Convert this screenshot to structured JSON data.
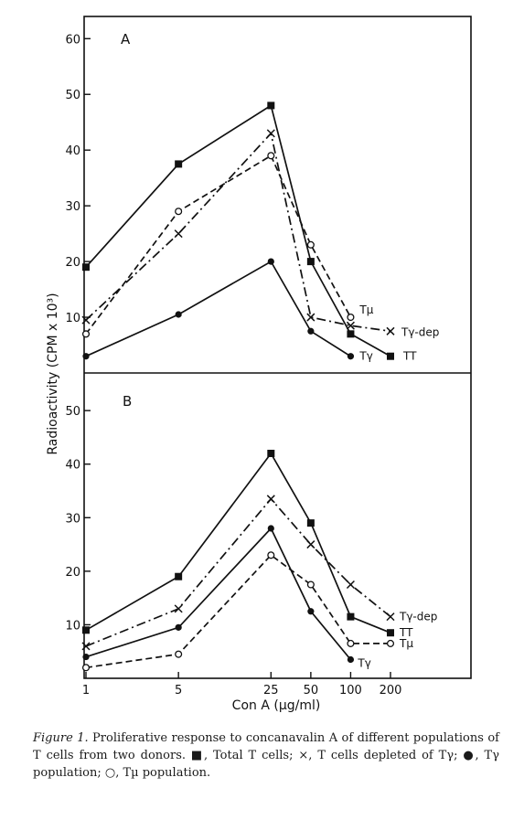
{
  "figure": {
    "ylabel": "Radioactivity (CPM x 10³)",
    "xlabel": "Con A (µg/ml)",
    "x_ticks": [
      1,
      5,
      25,
      50,
      100,
      200
    ],
    "x_tick_labels": [
      "1",
      "5",
      "25",
      "50",
      "100",
      "200"
    ]
  },
  "chart_data": [
    {
      "type": "line",
      "panel": "A",
      "x_scale": "log",
      "ylim": [
        0,
        63
      ],
      "y_ticks": [
        10,
        20,
        30,
        40,
        50,
        60
      ],
      "y_tick_labels": [
        "10",
        "20",
        "30",
        "40",
        "50",
        "60"
      ],
      "series": [
        {
          "name": "TT",
          "marker": "square",
          "dash": "solid",
          "x": [
            1,
            5,
            25,
            50,
            100,
            200
          ],
          "y": [
            19,
            37.5,
            48,
            20,
            7,
            3
          ]
        },
        {
          "name": "Tγ-dep",
          "marker": "cross",
          "dash": "dashdot",
          "x": [
            1,
            5,
            25,
            50,
            100,
            200
          ],
          "y": [
            9.5,
            25,
            43,
            10,
            8.5,
            7.5
          ]
        },
        {
          "name": "Tµ",
          "marker": "circle-open",
          "dash": "dashed",
          "x": [
            1,
            5,
            25,
            50,
            100
          ],
          "y": [
            7,
            29,
            39,
            23,
            10
          ]
        },
        {
          "name": "Tγ",
          "marker": "circle-filled",
          "dash": "solid",
          "x": [
            1,
            5,
            25,
            50,
            100
          ],
          "y": [
            3,
            10.5,
            20,
            7.5,
            3
          ]
        }
      ]
    },
    {
      "type": "line",
      "panel": "B",
      "x_scale": "log",
      "ylim": [
        0,
        56
      ],
      "y_ticks": [
        10,
        20,
        30,
        40,
        50
      ],
      "y_tick_labels": [
        "10",
        "20",
        "30",
        "40",
        "50"
      ],
      "series": [
        {
          "name": "TT",
          "marker": "square",
          "dash": "solid",
          "x": [
            1,
            5,
            25,
            50,
            100,
            200
          ],
          "y": [
            9,
            19,
            42,
            29,
            11.5,
            8.5
          ]
        },
        {
          "name": "Tγ-dep",
          "marker": "cross",
          "dash": "dashdot",
          "x": [
            1,
            5,
            25,
            50,
            100,
            200
          ],
          "y": [
            6,
            13,
            33.5,
            25,
            17.5,
            11.5
          ]
        },
        {
          "name": "Tµ",
          "marker": "circle-open",
          "dash": "dashed",
          "x": [
            1,
            5,
            25,
            50,
            100,
            200
          ],
          "y": [
            2,
            4.5,
            23,
            17.5,
            6.5,
            6.5
          ]
        },
        {
          "name": "Tγ",
          "marker": "circle-filled",
          "dash": "solid",
          "x": [
            1,
            5,
            25,
            50,
            100
          ],
          "y": [
            4,
            9.5,
            28,
            12.5,
            3.5
          ]
        }
      ]
    }
  ],
  "caption": {
    "lead": "Figure 1.",
    "body": " Proliferative response to concanavalin A of different populations of T cells from two donors. ■, Total T cells; ×, T cells depleted of Tγ; ●, Tγ population; ○, Tµ population."
  }
}
